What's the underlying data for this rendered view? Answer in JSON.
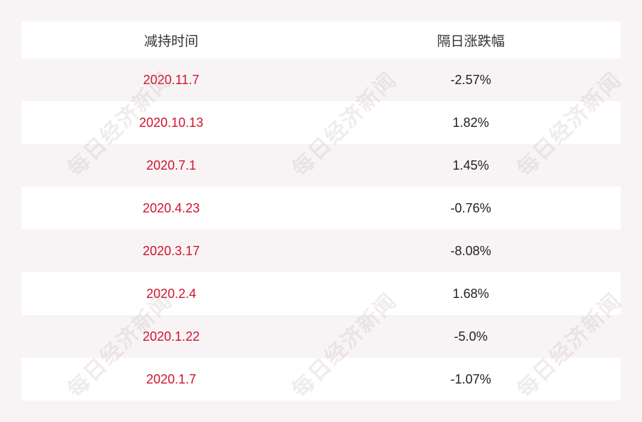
{
  "table": {
    "header": [
      "减持时间",
      "隔日涨跌幅"
    ],
    "rows": [
      [
        "2020.11.7",
        "-2.57%"
      ],
      [
        "2020.10.13",
        "1.82%"
      ],
      [
        "2020.7.1",
        "1.45%"
      ],
      [
        "2020.4.23",
        "-0.76%"
      ],
      [
        "2020.3.17",
        "-8.08%"
      ],
      [
        "2020.2.4",
        "1.68%"
      ],
      [
        "2020.1.22",
        "-5.0%"
      ],
      [
        "2020.1.7",
        "-1.07%"
      ]
    ]
  },
  "watermark": "每日经济新闻"
}
